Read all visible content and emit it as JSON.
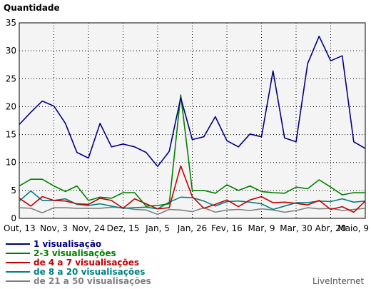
{
  "chart_data": {
    "type": "line",
    "title": "",
    "ylabel": "Quantidade",
    "xlabel": "",
    "ylim": [
      0,
      35
    ],
    "yticks": [
      0,
      5,
      10,
      15,
      20,
      25,
      30,
      35
    ],
    "x_tick_labels": [
      "Out, 13",
      "Nov, 3",
      "Nov, 24",
      "Dez, 15",
      "Jan, 5",
      "Jan, 26",
      "Fev, 16",
      "Mar, 9",
      "Mar, 30",
      "Abr, 20",
      "Maio, 9"
    ],
    "grid": true,
    "legend_position": "bottom",
    "series": [
      {
        "name": "1 visualisação",
        "color": "#000080",
        "values": [
          16.8,
          19,
          21,
          20.1,
          17,
          11.8,
          10.8,
          17,
          12.8,
          13.3,
          12.8,
          11.8,
          9.3,
          12,
          21.6,
          14.1,
          14.6,
          18.2,
          13.9,
          12.8,
          15.1,
          14.6,
          26.4,
          14.4,
          13.7,
          27.7,
          32.6,
          28.2,
          29.1,
          13.7,
          12.5
        ]
      },
      {
        "name": "2-3 visualisações",
        "color": "#008000",
        "values": [
          5.8,
          7,
          7,
          5.8,
          4.8,
          5.8,
          3.2,
          3.8,
          3.6,
          4.6,
          4.6,
          2.2,
          2.3,
          2.6,
          22.1,
          5,
          5,
          4.5,
          6,
          5,
          5.8,
          4.8,
          4.6,
          4.5,
          5.6,
          5.3,
          6.9,
          5.6,
          4.2,
          4.6,
          4.6
        ]
      },
      {
        "name": "de 4 a 7 visualisações",
        "color": "#c00000",
        "values": [
          3.6,
          2.2,
          3.9,
          3.2,
          3.1,
          2.6,
          2.5,
          3.6,
          3.2,
          1.8,
          3.5,
          2.6,
          1.7,
          1.9,
          9.4,
          3.9,
          1.8,
          2.5,
          3.3,
          2.1,
          3.3,
          3.9,
          2.8,
          2.9,
          2.7,
          2.4,
          3.2,
          1.6,
          2.1,
          1.1,
          3.1
        ]
      },
      {
        "name": "de 8 a 20 visualisações",
        "color": "#008080",
        "values": [
          3.1,
          4.9,
          3.2,
          3.2,
          3.5,
          2.5,
          2.3,
          2.6,
          2.2,
          1.8,
          1.9,
          2.0,
          1.7,
          2.9,
          3.8,
          3.7,
          3.1,
          2.2,
          3.0,
          3.1,
          2.9,
          2.6,
          1.6,
          2.2,
          2.8,
          2.8,
          3.1,
          3.0,
          3.5,
          2.9,
          3.1
        ]
      },
      {
        "name": "de 21 a 50 visualisações",
        "color": "#808080",
        "values": [
          1.9,
          1.8,
          1.0,
          1.9,
          1.9,
          1.8,
          1.8,
          1.8,
          2.0,
          1.9,
          1.6,
          1.5,
          0.7,
          1.6,
          1.5,
          1.2,
          1.9,
          1.1,
          1.5,
          1.6,
          1.4,
          1.7,
          1.5,
          1.1,
          1.4,
          1.9,
          1.7,
          1.8,
          1.4,
          1.6,
          1.8
        ]
      }
    ]
  },
  "credit": "LiveInternet"
}
